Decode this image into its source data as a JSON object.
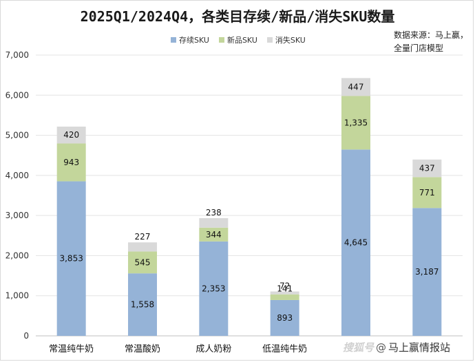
{
  "chart_data": {
    "type": "bar",
    "stacked": true,
    "title": "2025Q1/2024Q4，各类目存续/新品/消失SKU数量",
    "categories": [
      "常温纯牛奶",
      "常温酸奶",
      "成人奶粉",
      "低温纯牛奶",
      "",
      ""
    ],
    "series": [
      {
        "name": "存续SKU",
        "color": "#95b3d7",
        "values": [
          3853,
          1558,
          2353,
          893,
          4645,
          3187
        ],
        "labels": [
          "3,853",
          "1,558",
          "2,353",
          "893",
          "4,645",
          "3,187"
        ]
      },
      {
        "name": "新品SKU",
        "color": "#c3d69b",
        "values": [
          943,
          545,
          344,
          141,
          1335,
          771
        ],
        "labels": [
          "943",
          "545",
          "344",
          "141",
          "1,335",
          "771"
        ]
      },
      {
        "name": "消失SKU",
        "color": "#d9d9d9",
        "values": [
          420,
          227,
          238,
          72,
          447,
          437
        ],
        "labels": [
          "420",
          "227",
          "238",
          "72",
          "447",
          "437"
        ]
      }
    ],
    "y_ticks": [
      "0",
      "1,000",
      "2,000",
      "3,000",
      "4,000",
      "5,000",
      "6,000",
      "7,000"
    ],
    "ylim": [
      0,
      7000
    ],
    "grid": true,
    "legend_position": "top"
  },
  "source_note": [
    "数据来源：马上赢，",
    "全量门店模型"
  ],
  "watermark": {
    "brand": "搜狐号",
    "at": "@",
    "name": "马上赢情报站"
  }
}
